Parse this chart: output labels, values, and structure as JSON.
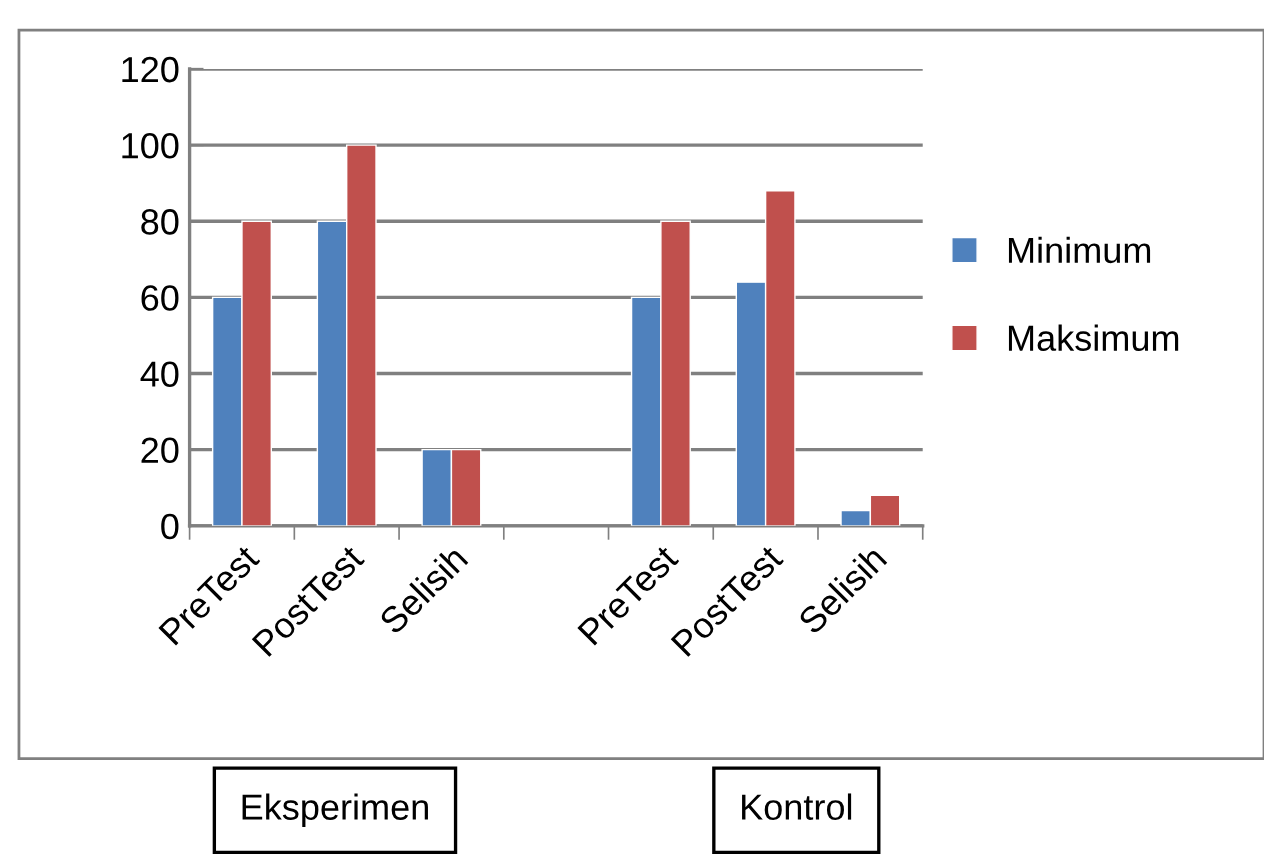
{
  "chart_data": {
    "type": "bar",
    "categories": [
      "PreTest",
      "PostTest",
      "Selisih",
      null,
      "PreTest",
      "PostTest",
      "Selisih"
    ],
    "series": [
      {
        "name": "Minimum",
        "color": "#4f81bd",
        "values": [
          60,
          80,
          20,
          null,
          60,
          64,
          4
        ]
      },
      {
        "name": "Maksimum",
        "color": "#c0504d",
        "values": [
          80,
          100,
          20,
          null,
          80,
          88,
          8
        ]
      }
    ],
    "ylim": [
      0,
      120
    ],
    "yticks": [
      0,
      20,
      40,
      60,
      80,
      100,
      120
    ],
    "grid": "y",
    "legend": "right",
    "annotations": [
      "Eksperimen",
      "Kontrol"
    ]
  }
}
